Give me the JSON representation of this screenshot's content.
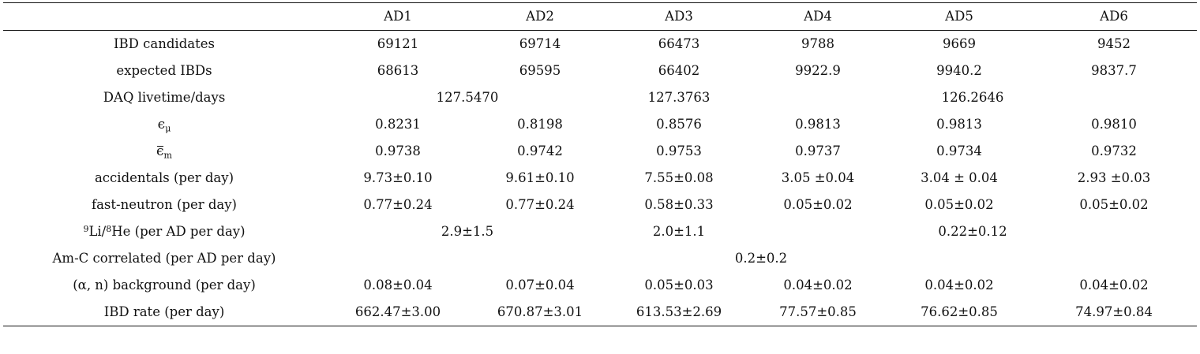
{
  "table": {
    "columns": [
      "",
      "AD1",
      "AD2",
      "AD3",
      "AD4",
      "AD5",
      "AD6"
    ],
    "rows": {
      "ibd_candidates": {
        "label": "IBD candidates",
        "values": [
          "69121",
          "69714",
          "66473",
          "9788",
          "9669",
          "9452"
        ]
      },
      "expected_ibds": {
        "label": "expected IBDs",
        "values": [
          "68613",
          "69595",
          "66402",
          "9922.9",
          "9940.2",
          "9837.7"
        ]
      },
      "daq_livetime": {
        "label": "DAQ livetime/days",
        "values": [
          "127.5470",
          "127.3763",
          "126.2646"
        ]
      },
      "eps_mu": {
        "label_symbol": "ϵ",
        "label_sub": "μ",
        "values": [
          "0.8231",
          "0.8198",
          "0.8576",
          "0.9813",
          "0.9813",
          "0.9810"
        ]
      },
      "eps_m": {
        "label_symbol": "ϵ",
        "label_sub": "m",
        "values": [
          "0.9738",
          "0.9742",
          "0.9753",
          "0.9737",
          "0.9734",
          "0.9732"
        ]
      },
      "accidentals": {
        "label": "accidentals (per day)",
        "values": [
          "9.73±0.10",
          "9.61±0.10",
          "7.55±0.08",
          "3.05 ±0.04",
          "3.04 ± 0.04",
          "2.93 ±0.03"
        ]
      },
      "fast_neutron": {
        "label": "fast-neutron (per day)",
        "values": [
          "0.77±0.24",
          "0.77±0.24",
          "0.58±0.33",
          "0.05±0.02",
          "0.05±0.02",
          "0.05±0.02"
        ]
      },
      "li_he": {
        "label_sup1": "9",
        "label_part1": "Li/",
        "label_sup2": "8",
        "label_part2": "He (per AD per day)",
        "values": [
          "2.9±1.5",
          "2.0±1.1",
          "0.22±0.12"
        ]
      },
      "amc": {
        "label": "Am-C correlated (per AD per day)",
        "values": [
          "0.2±0.2"
        ]
      },
      "alpha_n": {
        "label": "(α, n) background (per day)",
        "values": [
          "0.08±0.04",
          "0.07±0.04",
          "0.05±0.03",
          "0.04±0.02",
          "0.04±0.02",
          "0.04±0.02"
        ]
      },
      "ibd_rate": {
        "label": "IBD rate (per day)",
        "values": [
          "662.47±3.00",
          "670.87±3.01",
          "613.53±2.69",
          "77.57±0.85",
          "76.62±0.85",
          "74.97±0.84"
        ]
      }
    }
  }
}
